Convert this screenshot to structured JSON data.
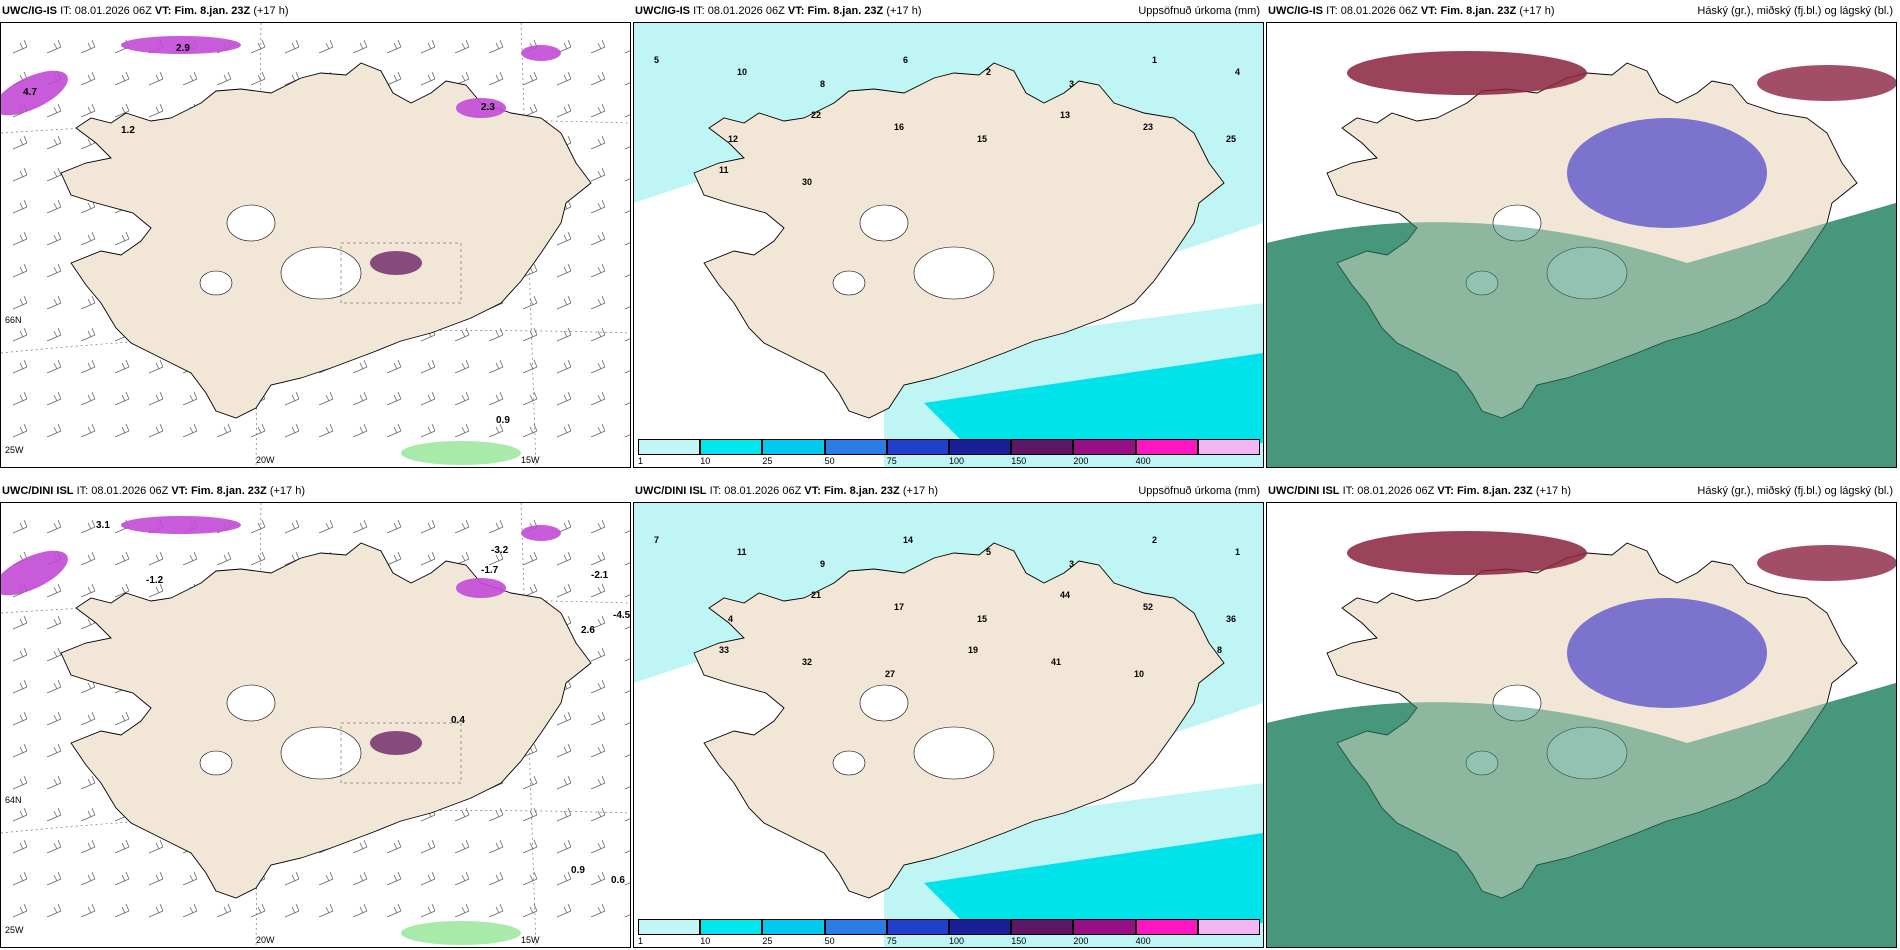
{
  "panels": [
    {
      "model": "UWC/IG-IS",
      "it_label": "IT:",
      "it_value": "08.01.2026 06Z",
      "vt_label": "VT:",
      "vt_value": "Fim. 8.jan. 23Z",
      "lead": "(+17 h)",
      "right_title": "",
      "kind": "wind"
    },
    {
      "model": "UWC/IG-IS",
      "it_label": "IT:",
      "it_value": "08.01.2026 06Z",
      "vt_label": "VT:",
      "vt_value": "Fim. 8.jan. 23Z",
      "lead": "(+17 h)",
      "right_title": "Uppsöfnuð úrkoma (mm)",
      "kind": "precip"
    },
    {
      "model": "UWC/IG-IS",
      "it_label": "IT:",
      "it_value": "08.01.2026 06Z",
      "vt_label": "VT:",
      "vt_value": "Fim. 8.jan. 23Z",
      "lead": "(+17 h)",
      "right_title": "Háský (gr.), miðský (fj.bl.) og lágský (bl.)",
      "kind": "cloud"
    },
    {
      "model": "UWC/DINI ISL",
      "it_label": "IT:",
      "it_value": "08.01.2026 06Z",
      "vt_label": "VT:",
      "vt_value": "Fim. 8.jan. 23Z",
      "lead": "(+17 h)",
      "right_title": "",
      "kind": "wind"
    },
    {
      "model": "UWC/DINI ISL",
      "it_label": "IT:",
      "it_value": "08.01.2026 06Z",
      "vt_label": "VT:",
      "vt_value": "Fim. 8.jan. 23Z",
      "lead": "(+17 h)",
      "right_title": "Uppsöfnuð úrkoma (mm)",
      "kind": "precip"
    },
    {
      "model": "UWC/DINI ISL",
      "it_label": "IT:",
      "it_value": "08.01.2026 06Z",
      "vt_label": "VT:",
      "vt_value": "Fim. 8.jan. 23Z",
      "lead": "(+17 h)",
      "right_title": "Háský (gr.), miðský (fj.bl.) og lágský (bl.)",
      "kind": "cloud"
    }
  ],
  "axis_labels": {
    "lon_20": "20W",
    "lon_15": "15W",
    "lat_66": "66N",
    "lat_64": "64N",
    "lon_25": "25W"
  },
  "wind_values_top": [
    "0.9",
    "2.9",
    "2.3",
    "1.2",
    "4.7"
  ],
  "wind_values_bottom": [
    "-1.2",
    "-2.1",
    "-4.5",
    "-3.2",
    "0.4",
    "2.6",
    "0.9",
    "0.6",
    "-1.7",
    "3.1"
  ],
  "precip_values_top": [
    "5",
    "10",
    "8",
    "6",
    "2",
    "3",
    "1",
    "4",
    "12",
    "22",
    "16",
    "15",
    "13",
    "23",
    "25",
    "11",
    "30"
  ],
  "precip_values_bottom": [
    "7",
    "11",
    "9",
    "14",
    "5",
    "3",
    "2",
    "1",
    "4",
    "21",
    "17",
    "15",
    "44",
    "52",
    "36",
    "33",
    "32",
    "27",
    "19",
    "41",
    "10",
    "8"
  ],
  "legend": {
    "ticks": [
      "1",
      "10",
      "25",
      "50",
      "75",
      "100",
      "150",
      "200",
      "400"
    ],
    "colors": [
      "#c2f6f6",
      "#00e8ef",
      "#00c8ee",
      "#2a7ee6",
      "#1f3fcc",
      "#1a1f99",
      "#5e1566",
      "#9a0e84",
      "#ff16c0",
      "#f2b6f0"
    ]
  },
  "colors": {
    "land": "#f2e6d6",
    "sea": "#ffffff",
    "precip_light": "#bff6f5",
    "precip_mid": "#00e3ea",
    "cloud_low": "#3a8f72",
    "cloud_mid": "#5c56cc",
    "cloud_high": "#8b2240",
    "magenta": "#c24ad6"
  }
}
